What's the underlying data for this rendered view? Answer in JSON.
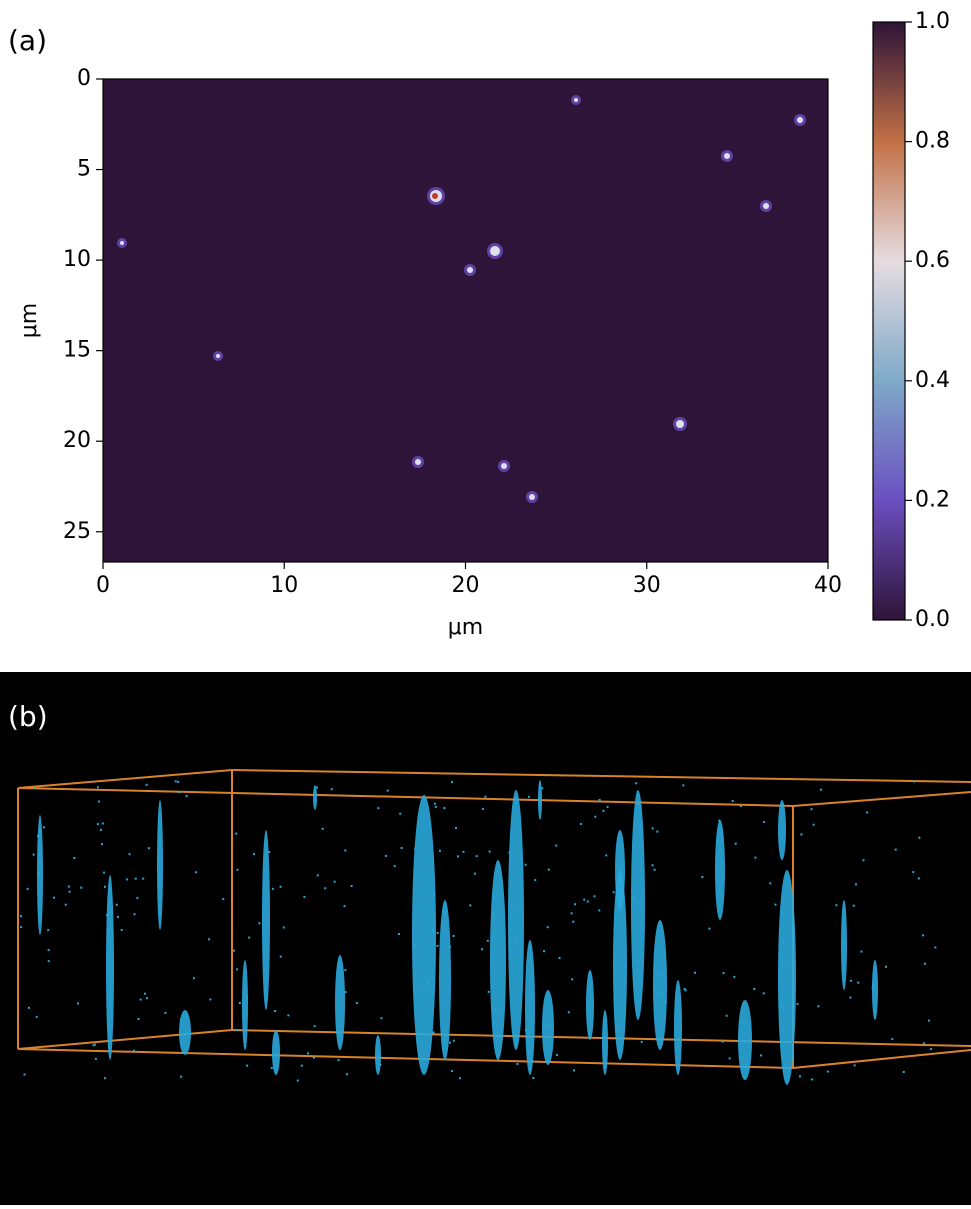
{
  "chart_data": {
    "type": "heatmap",
    "label": "(a)",
    "xlabel": "μm",
    "ylabel": "μm",
    "xlim": [
      0,
      40
    ],
    "xticks": [
      0,
      10,
      20,
      30,
      40
    ],
    "ylim": [
      26.67,
      0
    ],
    "yticks": [
      0,
      5,
      10,
      15,
      20,
      25
    ],
    "background": "#2e1438",
    "colorbar": {
      "lim": [
        0,
        1
      ],
      "ticks": [
        {
          "value": 0,
          "label": "0.0"
        },
        0.2,
        0.4,
        0.6,
        0.8,
        {
          "value": 1,
          "label": "1.0"
        }
      ],
      "colors": [
        "#2e1438",
        "#6a4fc0",
        "#7fa9c9",
        "#e6dce0",
        "#c27046",
        "#2e1438"
      ]
    }
  },
  "panel_b": {
    "label": "(b)"
  }
}
